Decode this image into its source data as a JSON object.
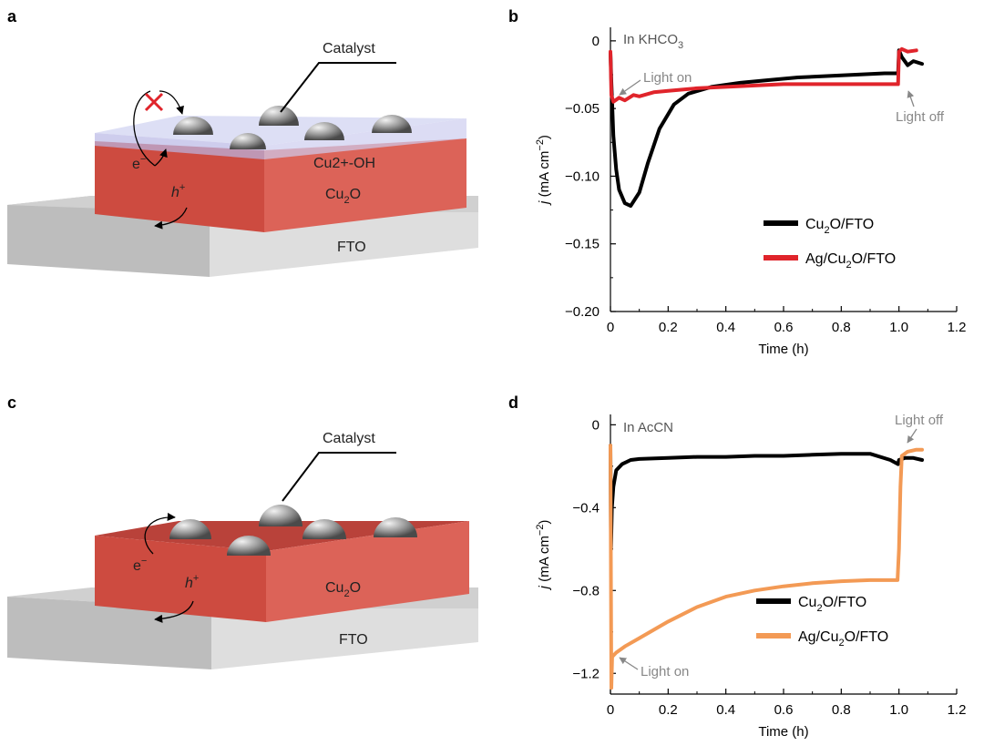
{
  "colors": {
    "cu2o_fto": "#000000",
    "ag_b": "#e0242b",
    "ag_d": "#f39a55",
    "cu2o_face": "#d8584d",
    "fto_face": "#dcdcdc",
    "note": "#888888"
  },
  "diagrams": {
    "a": {
      "letter": "a",
      "catalyst_label": "Catalyst",
      "layer_text": "Cu2+-OH",
      "cu2o_label": "Cu",
      "cu2o_sub": "2",
      "cu2o_suffix": "O",
      "fto_label": "FTO",
      "electron_label": "e",
      "electron_sup": "−",
      "hole_label": "h",
      "hole_sup": "+",
      "block_icon": "cross-icon"
    },
    "c": {
      "letter": "c",
      "catalyst_label": "Catalyst",
      "cu2o_label": "Cu",
      "cu2o_sub": "2",
      "cu2o_suffix": "O",
      "fto_label": "FTO",
      "electron_label": "e",
      "electron_sup": "−",
      "hole_label": "h",
      "hole_sup": "+"
    }
  },
  "chart_data": [
    {
      "panel": "b",
      "type": "line",
      "condition": "In KHCO3",
      "xlabel": "Time (h)",
      "ylabel": "j (mA cm−2)",
      "xlim": [
        0,
        1.2
      ],
      "ylim": [
        -0.2,
        0.01
      ],
      "xticks": [
        "0",
        "0.2",
        "0.4",
        "0.6",
        "0.8",
        "1.0",
        "1.2"
      ],
      "yticks": [
        "0",
        "−0.05",
        "−0.10",
        "−0.15",
        "−0.20"
      ],
      "annotations": [
        "Light on",
        "Light off"
      ],
      "series": [
        {
          "name": "Cu2O/FTO",
          "legend_main": "Cu",
          "legend_sub": "2",
          "legend_rest": "O/FTO",
          "color": "#000000",
          "x": [
            0,
            0.003,
            0.01,
            0.02,
            0.03,
            0.05,
            0.07,
            0.1,
            0.13,
            0.17,
            0.22,
            0.27,
            0.35,
            0.45,
            0.55,
            0.65,
            0.75,
            0.85,
            0.95,
            0.997,
            1.0,
            1.01,
            1.03,
            1.05,
            1.08
          ],
          "y": [
            -0.009,
            -0.03,
            -0.07,
            -0.095,
            -0.11,
            -0.12,
            -0.122,
            -0.112,
            -0.09,
            -0.065,
            -0.047,
            -0.039,
            -0.034,
            -0.031,
            -0.029,
            -0.027,
            -0.026,
            -0.025,
            -0.024,
            -0.024,
            -0.007,
            -0.012,
            -0.018,
            -0.015,
            -0.017
          ]
        },
        {
          "name": "Ag/Cu2O/FTO",
          "legend_main": "Ag/Cu",
          "legend_sub": "2",
          "legend_rest": "O/FTO",
          "color": "#e0242b",
          "x": [
            0,
            0.003,
            0.01,
            0.03,
            0.05,
            0.08,
            0.1,
            0.15,
            0.2,
            0.3,
            0.4,
            0.5,
            0.6,
            0.7,
            0.8,
            0.9,
            0.97,
            0.997,
            1.0,
            1.01,
            1.03,
            1.06
          ],
          "y": [
            -0.008,
            -0.04,
            -0.045,
            -0.042,
            -0.044,
            -0.04,
            -0.041,
            -0.038,
            -0.037,
            -0.035,
            -0.034,
            -0.033,
            -0.032,
            -0.032,
            -0.032,
            -0.032,
            -0.032,
            -0.032,
            -0.008,
            -0.006,
            -0.008,
            -0.007
          ]
        }
      ]
    },
    {
      "panel": "d",
      "type": "line",
      "condition": "In AcCN",
      "xlabel": "Time (h)",
      "ylabel": "j (mA cm−2)",
      "xlim": [
        0,
        1.2
      ],
      "ylim": [
        -1.3,
        0.05
      ],
      "xticks": [
        "0",
        "0.2",
        "0.4",
        "0.6",
        "0.8",
        "1.0",
        "1.2"
      ],
      "yticks": [
        "0",
        "−0.4",
        "−0.8",
        "−1.2"
      ],
      "annotations": [
        "Light off",
        "Light on"
      ],
      "series": [
        {
          "name": "Cu2O/FTO",
          "legend_main": "Cu",
          "legend_sub": "2",
          "legend_rest": "O/FTO",
          "color": "#000000",
          "x": [
            0,
            0.002,
            0.005,
            0.01,
            0.02,
            0.04,
            0.07,
            0.1,
            0.2,
            0.3,
            0.4,
            0.5,
            0.6,
            0.7,
            0.8,
            0.9,
            0.97,
            0.997,
            1.0,
            1.02,
            1.05,
            1.08
          ],
          "y": [
            -0.1,
            -0.6,
            -0.4,
            -0.3,
            -0.22,
            -0.19,
            -0.17,
            -0.165,
            -0.16,
            -0.155,
            -0.155,
            -0.15,
            -0.15,
            -0.145,
            -0.14,
            -0.14,
            -0.17,
            -0.19,
            -0.17,
            -0.16,
            -0.16,
            -0.17
          ]
        },
        {
          "name": "Ag/Cu2O/FTO",
          "legend_main": "Ag/Cu",
          "legend_sub": "2",
          "legend_rest": "O/FTO",
          "color": "#f39a55",
          "x": [
            0,
            0.003,
            0.006,
            0.02,
            0.05,
            0.1,
            0.15,
            0.2,
            0.3,
            0.4,
            0.5,
            0.6,
            0.7,
            0.8,
            0.9,
            0.97,
            0.995,
            1.0,
            1.005,
            1.01,
            1.03,
            1.06,
            1.08
          ],
          "y": [
            -0.1,
            -1.27,
            -1.12,
            -1.1,
            -1.07,
            -1.03,
            -0.99,
            -0.95,
            -0.88,
            -0.83,
            -0.8,
            -0.78,
            -0.765,
            -0.755,
            -0.75,
            -0.75,
            -0.75,
            -0.6,
            -0.3,
            -0.15,
            -0.13,
            -0.12,
            -0.12
          ]
        }
      ]
    }
  ]
}
